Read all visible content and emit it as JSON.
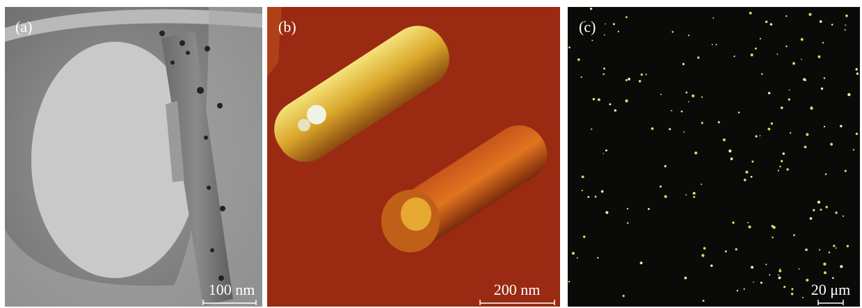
{
  "panels": [
    {
      "label": "(a)",
      "scale_bar": "100 nm"
    },
    {
      "label": "(b)",
      "scale_bar": "200 nm"
    },
    {
      "label": "(c)",
      "scale_bar": "20 μm"
    }
  ]
}
